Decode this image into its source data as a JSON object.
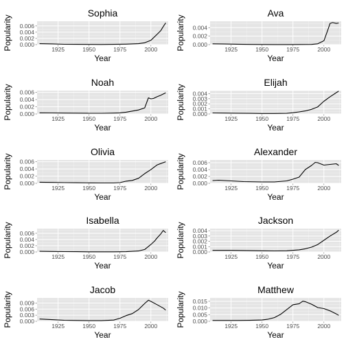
{
  "chart_data": [
    {
      "type": "line",
      "title": "Sophia",
      "xlabel": "Year",
      "ylabel": "Popularity",
      "xlim": [
        1908,
        2014
      ],
      "ylim": [
        0,
        0.0075
      ],
      "xticks": [
        1925,
        1950,
        1975,
        2000
      ],
      "yticks": [
        0,
        0.002,
        0.004,
        0.006
      ],
      "ytick_labels": [
        "0.000",
        "0.002",
        "0.004",
        "0.006"
      ],
      "x": [
        1910,
        1920,
        1930,
        1940,
        1950,
        1960,
        1970,
        1980,
        1990,
        1995,
        2000,
        2005,
        2008,
        2010,
        2012
      ],
      "y": [
        0.0003,
        0.00025,
        0.00012,
        8e-05,
        6e-05,
        5e-05,
        8e-05,
        0.00015,
        0.0003,
        0.0006,
        0.0014,
        0.0033,
        0.0045,
        0.0058,
        0.007
      ]
    },
    {
      "type": "line",
      "title": "Ava",
      "xlabel": "Year",
      "ylabel": "Popularity",
      "xlim": [
        1908,
        2014
      ],
      "ylim": [
        0,
        0.0055
      ],
      "xticks": [
        1925,
        1950,
        1975,
        2000
      ],
      "yticks": [
        0,
        0.002,
        0.004
      ],
      "ytick_labels": [
        "0.000",
        "0.002",
        "0.004"
      ],
      "x": [
        1910,
        1920,
        1930,
        1940,
        1950,
        1960,
        1970,
        1980,
        1990,
        1995,
        2000,
        2003,
        2005,
        2007,
        2010,
        2012
      ],
      "y": [
        0.0002,
        0.00015,
        0.0001,
        5e-05,
        3e-05,
        2e-05,
        2e-05,
        3e-05,
        5e-05,
        0.0002,
        0.0009,
        0.0033,
        0.005,
        0.0052,
        0.005,
        0.0051
      ]
    },
    {
      "type": "line",
      "title": "Noah",
      "xlabel": "Year",
      "ylabel": "Popularity",
      "xlim": [
        1908,
        2014
      ],
      "ylim": [
        0,
        0.0065
      ],
      "xticks": [
        1925,
        1950,
        1975,
        2000
      ],
      "yticks": [
        0,
        0.002,
        0.004,
        0.006
      ],
      "ytick_labels": [
        "0.000",
        "0.002",
        "0.004",
        "0.006"
      ],
      "x": [
        1910,
        1920,
        1930,
        1940,
        1950,
        1960,
        1970,
        1975,
        1980,
        1985,
        1990,
        1995,
        1998,
        2000,
        2002,
        2005,
        2008,
        2012
      ],
      "y": [
        0.0003,
        0.00028,
        0.00025,
        0.00022,
        0.0002,
        0.0002,
        0.00025,
        0.0003,
        0.0005,
        0.0008,
        0.0011,
        0.0017,
        0.0045,
        0.0042,
        0.0043,
        0.0048,
        0.0052,
        0.0059
      ]
    },
    {
      "type": "line",
      "title": "Elijah",
      "xlabel": "Year",
      "ylabel": "Popularity",
      "xlim": [
        1908,
        2014
      ],
      "ylim": [
        0,
        0.0046
      ],
      "xticks": [
        1925,
        1950,
        1975,
        2000
      ],
      "yticks": [
        0,
        0.001,
        0.002,
        0.003,
        0.004
      ],
      "ytick_labels": [
        "0.000",
        "0.001",
        "0.002",
        "0.003",
        "0.004"
      ],
      "x": [
        1910,
        1920,
        1930,
        1940,
        1950,
        1960,
        1970,
        1975,
        1980,
        1985,
        1990,
        1995,
        2000,
        2005,
        2010,
        2012
      ],
      "y": [
        0.0002,
        0.00018,
        0.00015,
        0.00012,
        0.0001,
        0.0001,
        0.00012,
        0.00025,
        0.0004,
        0.0006,
        0.0009,
        0.0014,
        0.0025,
        0.0034,
        0.0042,
        0.0045
      ]
    },
    {
      "type": "line",
      "title": "Olivia",
      "xlabel": "Year",
      "ylabel": "Popularity",
      "xlim": [
        1908,
        2014
      ],
      "ylim": [
        0,
        0.0065
      ],
      "xticks": [
        1925,
        1950,
        1975,
        2000
      ],
      "yticks": [
        0,
        0.002,
        0.004,
        0.006
      ],
      "ytick_labels": [
        "0.000",
        "0.002",
        "0.004",
        "0.006"
      ],
      "x": [
        1910,
        1920,
        1930,
        1940,
        1950,
        1960,
        1970,
        1975,
        1980,
        1985,
        1990,
        1995,
        2000,
        2003,
        2005,
        2008,
        2012
      ],
      "y": [
        0.0003,
        0.00025,
        0.0002,
        0.00015,
        0.00012,
        0.0001,
        0.0001,
        0.0002,
        0.0006,
        0.0008,
        0.0014,
        0.0027,
        0.0038,
        0.0046,
        0.0051,
        0.0055,
        0.006
      ]
    },
    {
      "type": "line",
      "title": "Alexander",
      "xlabel": "Year",
      "ylabel": "Popularity",
      "xlim": [
        1908,
        2014
      ],
      "ylim": [
        0,
        0.0068
      ],
      "xticks": [
        1925,
        1950,
        1975,
        2000
      ],
      "yticks": [
        0,
        0.002,
        0.004,
        0.006
      ],
      "ytick_labels": [
        "0.000",
        "0.002",
        "0.004",
        "0.006"
      ],
      "x": [
        1910,
        1915,
        1925,
        1935,
        1950,
        1960,
        1970,
        1975,
        1980,
        1985,
        1990,
        1993,
        1995,
        2000,
        2005,
        2010,
        2012
      ],
      "y": [
        0.0008,
        0.0009,
        0.0007,
        0.0005,
        0.0004,
        0.0004,
        0.0007,
        0.0012,
        0.0018,
        0.004,
        0.0052,
        0.0061,
        0.006,
        0.0053,
        0.0055,
        0.0057,
        0.0052
      ]
    },
    {
      "type": "line",
      "title": "Isabella",
      "xlabel": "Year",
      "ylabel": "Popularity",
      "xlim": [
        1908,
        2014
      ],
      "ylim": [
        0,
        0.0075
      ],
      "xticks": [
        1925,
        1950,
        1975,
        2000
      ],
      "yticks": [
        0,
        0.002,
        0.004,
        0.006
      ],
      "ytick_labels": [
        "0.000",
        "0.002",
        "0.004",
        "0.006"
      ],
      "x": [
        1910,
        1920,
        1930,
        1940,
        1950,
        1960,
        1970,
        1980,
        1990,
        1995,
        2000,
        2003,
        2005,
        2008,
        2010,
        2012
      ],
      "y": [
        0.0002,
        0.00015,
        0.0001,
        8e-05,
        5e-05,
        4e-05,
        4e-05,
        8e-05,
        0.0003,
        0.0008,
        0.0024,
        0.0035,
        0.0045,
        0.0058,
        0.0069,
        0.0062
      ]
    },
    {
      "type": "line",
      "title": "Jackson",
      "xlabel": "Year",
      "ylabel": "Popularity",
      "xlim": [
        1908,
        2014
      ],
      "ylim": [
        0,
        0.0044
      ],
      "xticks": [
        1925,
        1950,
        1975,
        2000
      ],
      "yticks": [
        0,
        0.001,
        0.002,
        0.003,
        0.004
      ],
      "ytick_labels": [
        "0.000",
        "0.001",
        "0.002",
        "0.003",
        "0.004"
      ],
      "x": [
        1910,
        1925,
        1940,
        1950,
        1960,
        1970,
        1980,
        1985,
        1990,
        1995,
        2000,
        2005,
        2010,
        2012
      ],
      "y": [
        0.0003,
        0.0003,
        0.00025,
        0.00022,
        0.0002,
        0.00022,
        0.0004,
        0.0006,
        0.0009,
        0.0014,
        0.0022,
        0.003,
        0.0037,
        0.0041
      ]
    },
    {
      "type": "line",
      "title": "Jacob",
      "xlabel": "Year",
      "ylabel": "Popularity",
      "xlim": [
        1908,
        2014
      ],
      "ylim": [
        0,
        0.0115
      ],
      "xticks": [
        1925,
        1950,
        1975,
        2000
      ],
      "yticks": [
        0,
        0.003,
        0.006,
        0.009
      ],
      "ytick_labels": [
        "0.000",
        "0.003",
        "0.006",
        "0.009"
      ],
      "x": [
        1910,
        1920,
        1930,
        1940,
        1950,
        1960,
        1970,
        1975,
        1980,
        1985,
        1990,
        1995,
        1998,
        2000,
        2005,
        2010,
        2012
      ],
      "y": [
        0.0011,
        0.0008,
        0.0005,
        0.0004,
        0.0003,
        0.0003,
        0.0006,
        0.0015,
        0.0028,
        0.0038,
        0.0058,
        0.0088,
        0.0104,
        0.0098,
        0.0082,
        0.0065,
        0.0055
      ]
    },
    {
      "type": "line",
      "title": "Matthew",
      "xlabel": "Year",
      "ylabel": "Popularity",
      "xlim": [
        1908,
        2014
      ],
      "ylim": [
        0,
        0.0175
      ],
      "xticks": [
        1925,
        1950,
        1975,
        2000
      ],
      "yticks": [
        0,
        0.005,
        0.01,
        0.015
      ],
      "ytick_labels": [
        "0.000",
        "0.005",
        "0.010",
        "0.015"
      ],
      "x": [
        1910,
        1920,
        1930,
        1940,
        1950,
        1955,
        1960,
        1965,
        1970,
        1975,
        1980,
        1983,
        1985,
        1990,
        1995,
        2000,
        2005,
        2010,
        2012
      ],
      "y": [
        0.0006,
        0.0006,
        0.0006,
        0.0007,
        0.001,
        0.0016,
        0.0028,
        0.0052,
        0.0088,
        0.0124,
        0.0132,
        0.0151,
        0.0147,
        0.0128,
        0.0103,
        0.0095,
        0.0078,
        0.0055,
        0.0045
      ]
    }
  ]
}
